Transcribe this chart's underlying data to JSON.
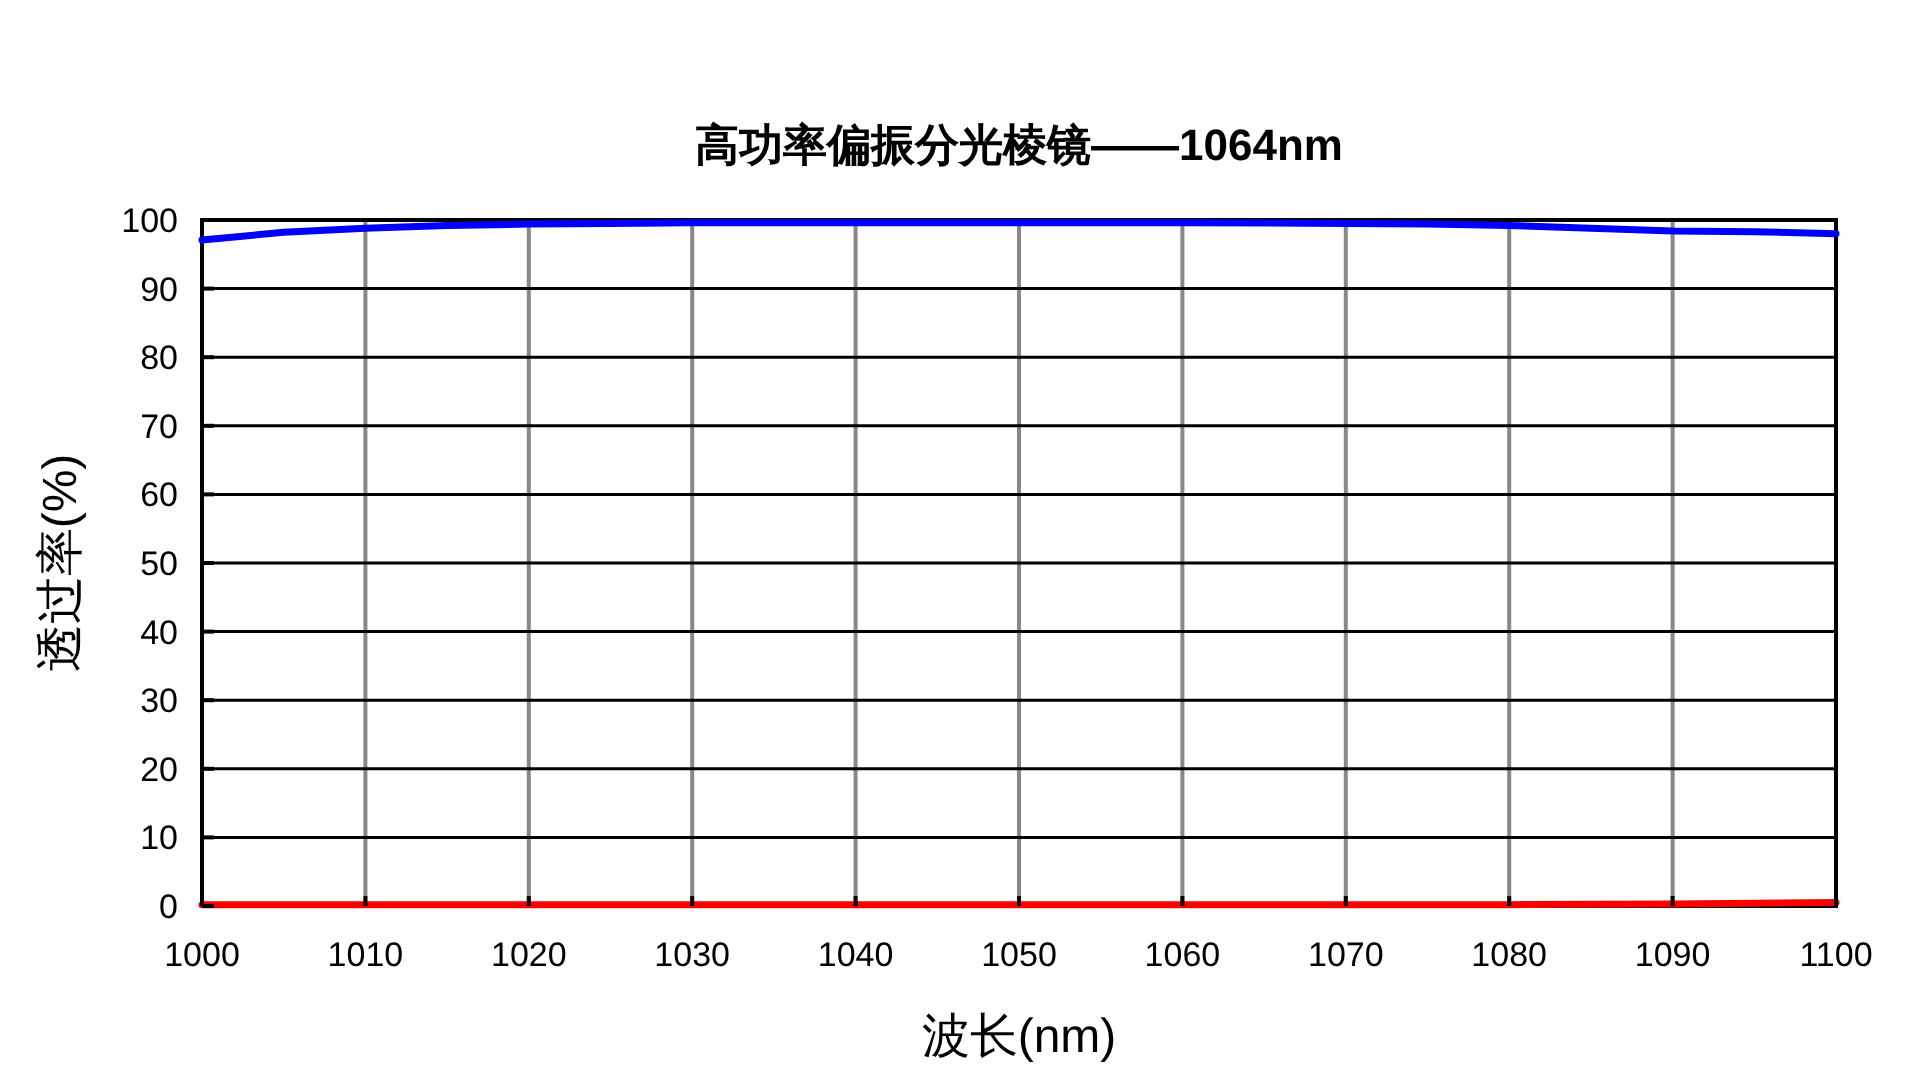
{
  "chart_data": {
    "type": "line",
    "title": "高功率偏振分光棱镜——1064nm",
    "xlabel": "波长(nm)",
    "ylabel": "透过率(%)",
    "xlim": [
      1000,
      1100
    ],
    "xticks": [
      1000,
      1010,
      1020,
      1030,
      1040,
      1050,
      1060,
      1070,
      1080,
      1090,
      1100
    ],
    "ylim": [
      0,
      100
    ],
    "yticks": [
      0,
      10,
      20,
      30,
      40,
      50,
      60,
      70,
      80,
      90,
      100
    ],
    "grid": true,
    "series": [
      {
        "color": "#0000ff",
        "x": [
          1000,
          1005,
          1010,
          1015,
          1020,
          1025,
          1030,
          1040,
          1050,
          1060,
          1070,
          1075,
          1080,
          1085,
          1090,
          1095,
          1100
        ],
        "values": [
          97.1,
          98.2,
          98.8,
          99.2,
          99.4,
          99.5,
          99.6,
          99.6,
          99.6,
          99.6,
          99.5,
          99.4,
          99.2,
          98.8,
          98.4,
          98.3,
          98.0
        ]
      },
      {
        "color": "#ff0000",
        "x": [
          1000,
          1020,
          1040,
          1060,
          1080,
          1090,
          1100
        ],
        "values": [
          0.2,
          0.2,
          0.2,
          0.2,
          0.2,
          0.3,
          0.5
        ]
      }
    ]
  }
}
